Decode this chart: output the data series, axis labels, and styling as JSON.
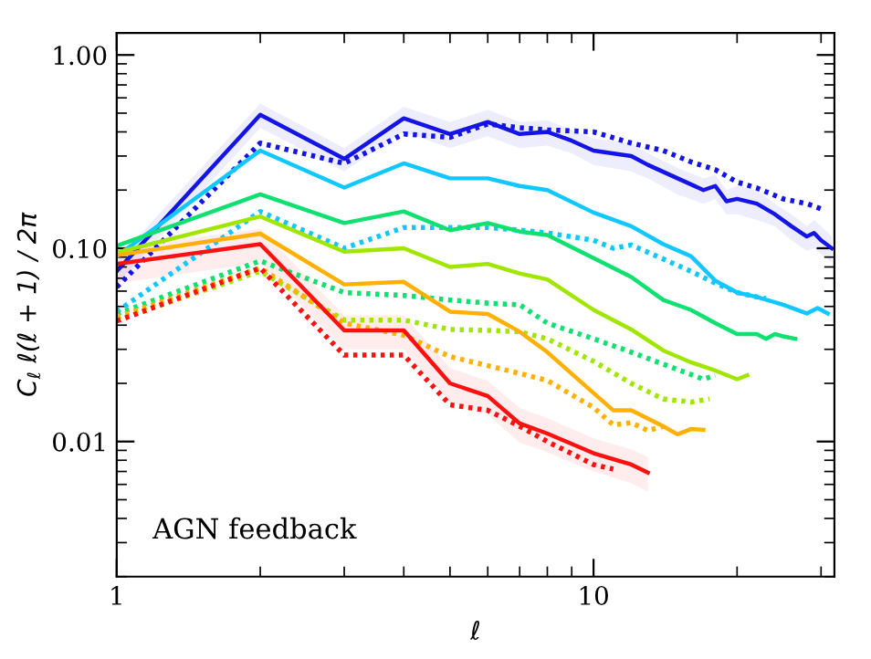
{
  "chart_data": {
    "type": "line",
    "xlabel": "ℓ",
    "ylabel": "C$_{ℓ}$ ℓ(ℓ + 1) / 2π",
    "log": "xy",
    "grid": false,
    "xlim": [
      1,
      32
    ],
    "ylim": [
      0.002,
      1.3
    ],
    "xticks": [
      1,
      10
    ],
    "yticks": [
      {
        "value": 0.01,
        "label": "0.01"
      },
      {
        "value": 0.1,
        "label": "0.10"
      },
      {
        "value": 1,
        "label": "1.00"
      }
    ],
    "annotations": [
      "AGN feedback"
    ],
    "series": [
      {
        "color": "#1414e6",
        "line_style": "solid",
        "x": [
          1,
          2,
          3,
          4,
          5,
          6,
          7,
          8,
          9,
          10,
          12,
          13,
          15,
          17,
          18,
          19,
          20,
          22,
          24,
          26,
          28,
          29,
          30,
          31.6
        ],
        "values": [
          0.076,
          0.49,
          0.29,
          0.47,
          0.39,
          0.45,
          0.39,
          0.4,
          0.36,
          0.32,
          0.3,
          0.27,
          0.23,
          0.2,
          0.21,
          0.175,
          0.18,
          0.17,
          0.15,
          0.13,
          0.115,
          0.12,
          0.11,
          0.1
        ],
        "lower": [
          0.065,
          0.42,
          0.25,
          0.4,
          0.33,
          0.38,
          0.33,
          0.34,
          0.31,
          0.27,
          0.25,
          0.23,
          0.19,
          0.17,
          0.18,
          0.15,
          0.15,
          0.14,
          0.13,
          0.11,
          0.097,
          0.1,
          0.093,
          0.085
        ],
        "upper": [
          0.087,
          0.56,
          0.33,
          0.54,
          0.45,
          0.52,
          0.45,
          0.46,
          0.41,
          0.37,
          0.35,
          0.31,
          0.26,
          0.23,
          0.24,
          0.2,
          0.21,
          0.2,
          0.17,
          0.15,
          0.13,
          0.14,
          0.13,
          0.115
        ]
      },
      {
        "color": "#1414e6",
        "line_style": "dotted",
        "x": [
          1,
          2,
          3,
          4,
          5,
          6,
          7,
          8,
          10,
          12,
          14,
          16,
          18,
          20,
          22,
          25,
          28,
          30
        ],
        "values": [
          0.063,
          0.35,
          0.275,
          0.39,
          0.375,
          0.44,
          0.42,
          0.41,
          0.4,
          0.35,
          0.32,
          0.28,
          0.255,
          0.22,
          0.205,
          0.18,
          0.17,
          0.16
        ]
      },
      {
        "color": "#10c8ff",
        "line_style": "solid",
        "x": [
          1,
          2,
          3,
          4,
          5,
          6,
          7,
          8,
          10,
          12,
          14,
          16,
          18,
          20,
          22,
          25,
          28,
          29.5,
          31
        ],
        "values": [
          0.091,
          0.32,
          0.206,
          0.275,
          0.23,
          0.23,
          0.21,
          0.2,
          0.153,
          0.13,
          0.105,
          0.091,
          0.068,
          0.059,
          0.056,
          0.051,
          0.046,
          0.049,
          0.046
        ]
      },
      {
        "color": "#10c8ff",
        "line_style": "dotted",
        "x": [
          1,
          2,
          3,
          4,
          5,
          6,
          7,
          8,
          10,
          11,
          12,
          14,
          16,
          18,
          20,
          22,
          23
        ],
        "values": [
          0.047,
          0.155,
          0.1,
          0.128,
          0.128,
          0.128,
          0.124,
          0.12,
          0.11,
          0.1,
          0.104,
          0.088,
          0.076,
          0.066,
          0.059,
          0.056,
          0.055
        ]
      },
      {
        "color": "#10e070",
        "line_style": "solid",
        "x": [
          1,
          2,
          3,
          4,
          5,
          6,
          7,
          8,
          10,
          12,
          14,
          16,
          18,
          20,
          22,
          23,
          24,
          25,
          26.5
        ],
        "values": [
          0.103,
          0.19,
          0.135,
          0.155,
          0.124,
          0.135,
          0.122,
          0.117,
          0.089,
          0.071,
          0.054,
          0.048,
          0.041,
          0.036,
          0.036,
          0.034,
          0.036,
          0.035,
          0.034
        ]
      },
      {
        "color": "#10e070",
        "line_style": "dotted",
        "x": [
          1,
          2,
          3,
          4,
          5,
          6,
          7,
          8,
          10,
          12,
          15,
          17,
          18
        ],
        "values": [
          0.0457,
          0.086,
          0.059,
          0.057,
          0.054,
          0.052,
          0.051,
          0.041,
          0.034,
          0.029,
          0.0236,
          0.021,
          0.022
        ]
      },
      {
        "color": "#a0e600",
        "line_style": "solid",
        "x": [
          1,
          2,
          3,
          4,
          5,
          6,
          7,
          8,
          10,
          12,
          14,
          16,
          18,
          20,
          21
        ],
        "values": [
          0.095,
          0.146,
          0.096,
          0.1,
          0.08,
          0.083,
          0.074,
          0.069,
          0.048,
          0.038,
          0.0296,
          0.0257,
          0.0233,
          0.021,
          0.022
        ]
      },
      {
        "color": "#a0e600",
        "line_style": "dotted",
        "x": [
          1,
          2,
          3,
          4,
          5,
          6,
          7,
          8,
          10,
          12,
          14,
          16,
          17.5
        ],
        "values": [
          0.0425,
          0.076,
          0.0425,
          0.0425,
          0.038,
          0.0376,
          0.037,
          0.034,
          0.026,
          0.02,
          0.0166,
          0.016,
          0.0166
        ]
      },
      {
        "color": "#ffb000",
        "line_style": "solid",
        "x": [
          1,
          2,
          3,
          4,
          5,
          6,
          7,
          8,
          10,
          11,
          12,
          14,
          15,
          16,
          17
        ],
        "values": [
          0.092,
          0.119,
          0.065,
          0.067,
          0.047,
          0.0457,
          0.037,
          0.029,
          0.0178,
          0.0145,
          0.0145,
          0.012,
          0.0109,
          0.0116,
          0.0115
        ]
      },
      {
        "color": "#ffb000",
        "line_style": "dotted",
        "x": [
          1,
          2,
          3,
          4,
          5,
          6,
          7,
          8,
          10,
          11,
          12,
          13,
          14
        ],
        "values": [
          0.044,
          0.079,
          0.041,
          0.0355,
          0.0275,
          0.0247,
          0.0225,
          0.0207,
          0.015,
          0.0122,
          0.0125,
          0.0114,
          0.012
        ]
      },
      {
        "color": "#ff1010",
        "line_style": "solid",
        "x": [
          1,
          2,
          3,
          4,
          5,
          6,
          7,
          8,
          10,
          12,
          13
        ],
        "values": [
          0.083,
          0.105,
          0.0376,
          0.0376,
          0.02,
          0.0172,
          0.0124,
          0.011,
          0.0087,
          0.0076,
          0.0069
        ],
        "lower": [
          0.066,
          0.084,
          0.03,
          0.03,
          0.016,
          0.0138,
          0.0099,
          0.0088,
          0.007,
          0.0061,
          0.0055
        ],
        "upper": [
          0.1,
          0.126,
          0.045,
          0.045,
          0.024,
          0.0206,
          0.0149,
          0.0132,
          0.0104,
          0.0091,
          0.0083
        ]
      },
      {
        "color": "#ff1010",
        "line_style": "dotted",
        "x": [
          1,
          2,
          3,
          4,
          5,
          6,
          7,
          8,
          10,
          11
        ],
        "values": [
          0.042,
          0.079,
          0.028,
          0.028,
          0.0155,
          0.0145,
          0.012,
          0.01,
          0.0076,
          0.0072
        ]
      }
    ]
  }
}
